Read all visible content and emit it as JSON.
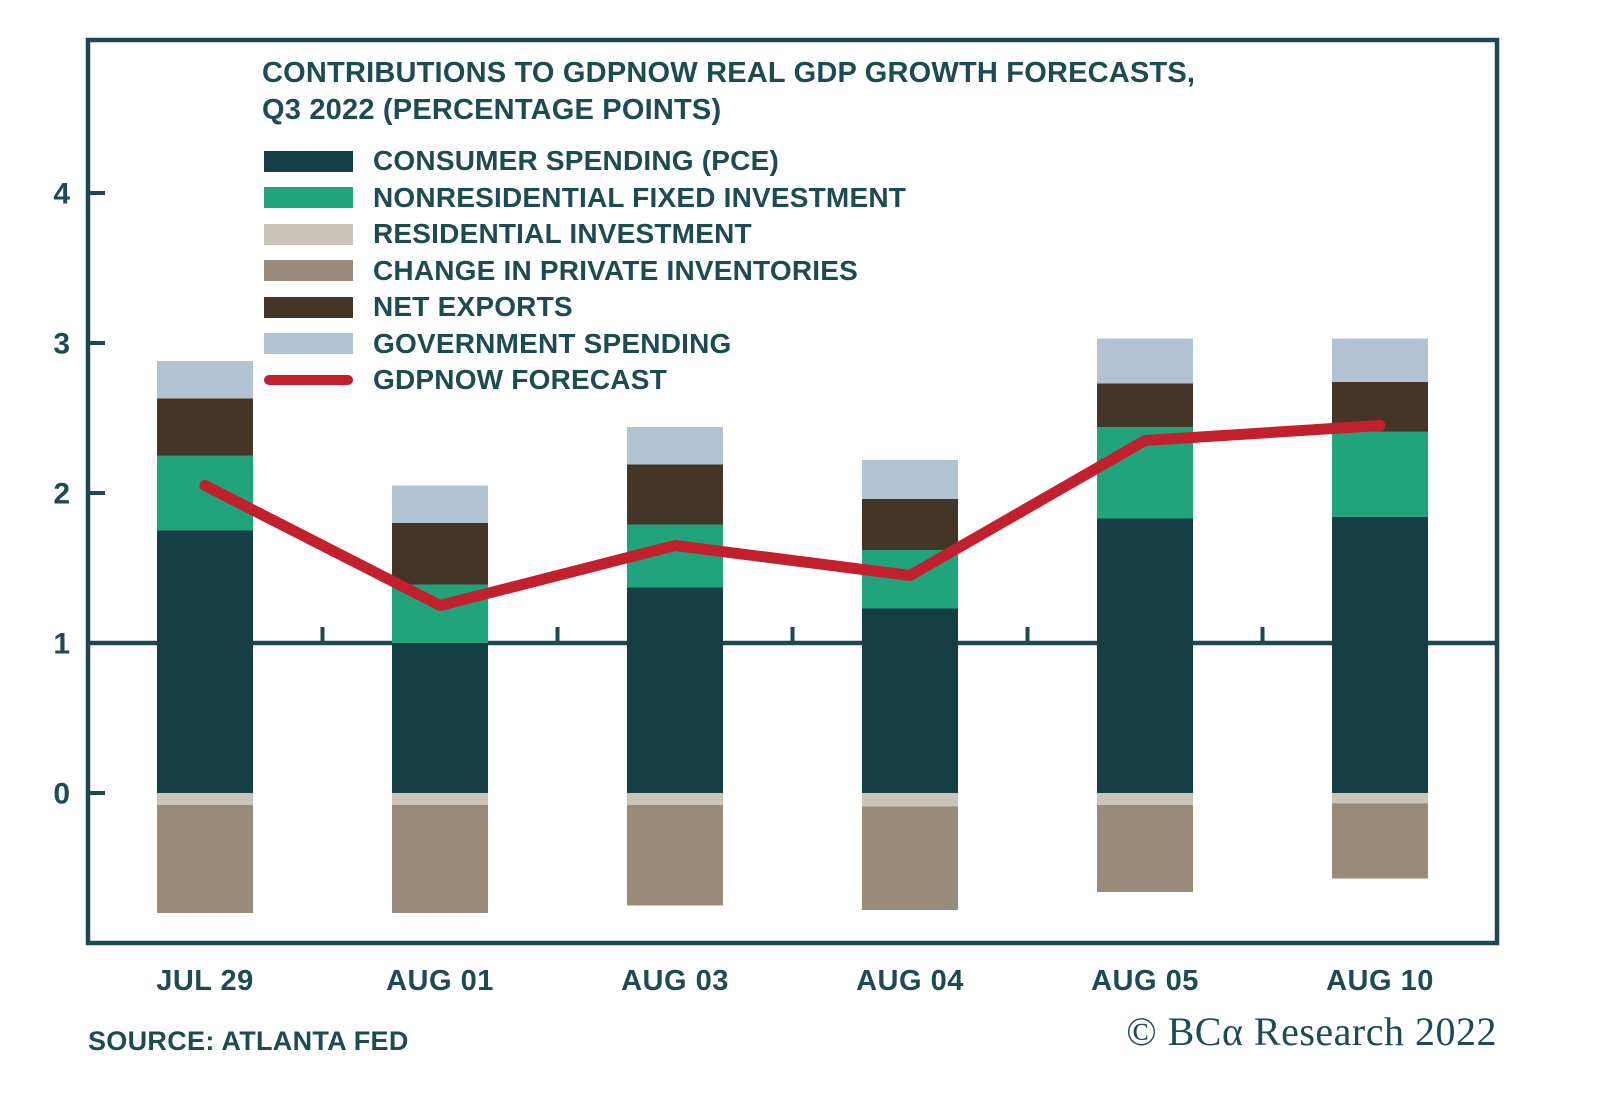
{
  "title": {
    "line1": "CONTRIBUTIONS TO GDPNOW REAL GDP GROWTH FORECASTS,",
    "line2": "Q3 2022 (PERCENTAGE POINTS)"
  },
  "footer": {
    "source": "SOURCE: ATLANTA FED",
    "copyright": "© BCα Research 2022"
  },
  "chart_data": {
    "type": "bar",
    "stacked": true,
    "title": "CONTRIBUTIONS TO GDPNOW REAL GDP GROWTH FORECASTS, Q3 2022 (PERCENTAGE POINTS)",
    "categories": [
      "JUL 29",
      "AUG 01",
      "AUG 03",
      "AUG 04",
      "AUG 05",
      "AUG 10"
    ],
    "series": [
      {
        "key": "pce",
        "name": "CONSUMER SPENDING (PCE)",
        "color": "#163E45",
        "values": [
          1.75,
          1.0,
          1.37,
          1.23,
          1.83,
          1.84
        ]
      },
      {
        "key": "nrfi",
        "name": "NONRESIDENTIAL FIXED INVESTMENT",
        "color": "#21A47B",
        "values": [
          0.5,
          0.39,
          0.42,
          0.39,
          0.61,
          0.57
        ]
      },
      {
        "key": "res",
        "name": "RESIDENTIAL INVESTMENT",
        "color": "#CBC5B9",
        "values": [
          -0.08,
          -0.08,
          -0.08,
          -0.09,
          -0.08,
          -0.07
        ]
      },
      {
        "key": "inv",
        "name": "CHANGE IN PRIVATE INVENTORIES",
        "color": "#998B7A",
        "values": [
          -0.72,
          -0.72,
          -0.67,
          -0.69,
          -0.58,
          -0.5
        ]
      },
      {
        "key": "nx",
        "name": "NET EXPORTS",
        "color": "#453526",
        "values": [
          0.38,
          0.41,
          0.4,
          0.34,
          0.29,
          0.33
        ]
      },
      {
        "key": "gov",
        "name": "GOVERNMENT SPENDING",
        "color": "#B1C3D2",
        "values": [
          0.25,
          0.25,
          0.25,
          0.26,
          0.3,
          0.29
        ]
      }
    ],
    "line": {
      "key": "gdpnow",
      "name": "GDPNOW FORECAST",
      "color": "#C2202C",
      "values": [
        2.05,
        1.25,
        1.65,
        1.45,
        2.35,
        2.45
      ]
    },
    "yticks": [
      0,
      1,
      2,
      3,
      4
    ],
    "ylim": [
      -1.0,
      5.0
    ],
    "baseline_value": 1,
    "axis_color": "#1E4850",
    "grid": false,
    "legend_position": "upper-left-inside"
  }
}
